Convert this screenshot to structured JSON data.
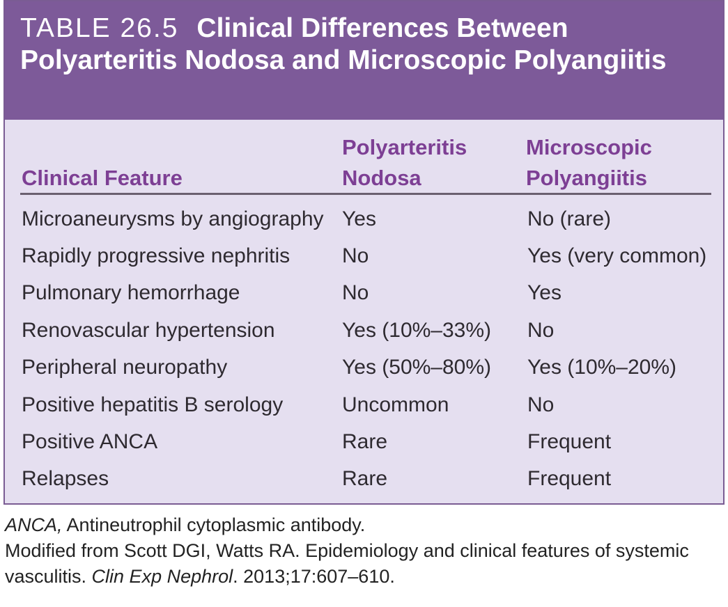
{
  "table": {
    "label": "TABLE 26.5",
    "title": "Clinical Differences Between Polyarteritis Nodosa and Microscopic Polyangiitis",
    "columns": {
      "feature": "Clinical Feature",
      "pan_line1": "Polyarteritis",
      "pan_line2": "Nodosa",
      "mpa_line1": "Microscopic",
      "mpa_line2": "Polyangiitis"
    },
    "rows": [
      {
        "feature": "Microaneurysms by angiography",
        "pan": "Yes",
        "mpa": "No (rare)"
      },
      {
        "feature": "Rapidly progressive nephritis",
        "pan": "No",
        "mpa": "Yes (very common)"
      },
      {
        "feature": "Pulmonary hemorrhage",
        "pan": "No",
        "mpa": "Yes"
      },
      {
        "feature": "Renovascular hypertension",
        "pan": "Yes (10%–33%)",
        "mpa": "No"
      },
      {
        "feature": "Peripheral neuropathy",
        "pan": "Yes (50%–80%)",
        "mpa": "Yes (10%–20%)"
      },
      {
        "feature": "Positive hepatitis B serology",
        "pan": "Uncommon",
        "mpa": "No"
      },
      {
        "feature": "Positive ANCA",
        "pan": "Rare",
        "mpa": "Frequent"
      },
      {
        "feature": "Relapses",
        "pan": "Rare",
        "mpa": "Frequent"
      }
    ]
  },
  "footnotes": {
    "abbrev_term": "ANCA,",
    "abbrev_definition": "Antineutrophil cytoplasmic antibody.",
    "source_prefix": "Modified from Scott DGI, Watts RA. Epidemiology and clinical features of systemic vasculitis.",
    "source_journal": "Clin Exp Nephrol",
    "source_suffix": ". 2013;17:607–610."
  },
  "colors": {
    "header_bg": "#7d5a99",
    "table_bg": "#e5dff0",
    "column_heading": "#7d3f94"
  }
}
